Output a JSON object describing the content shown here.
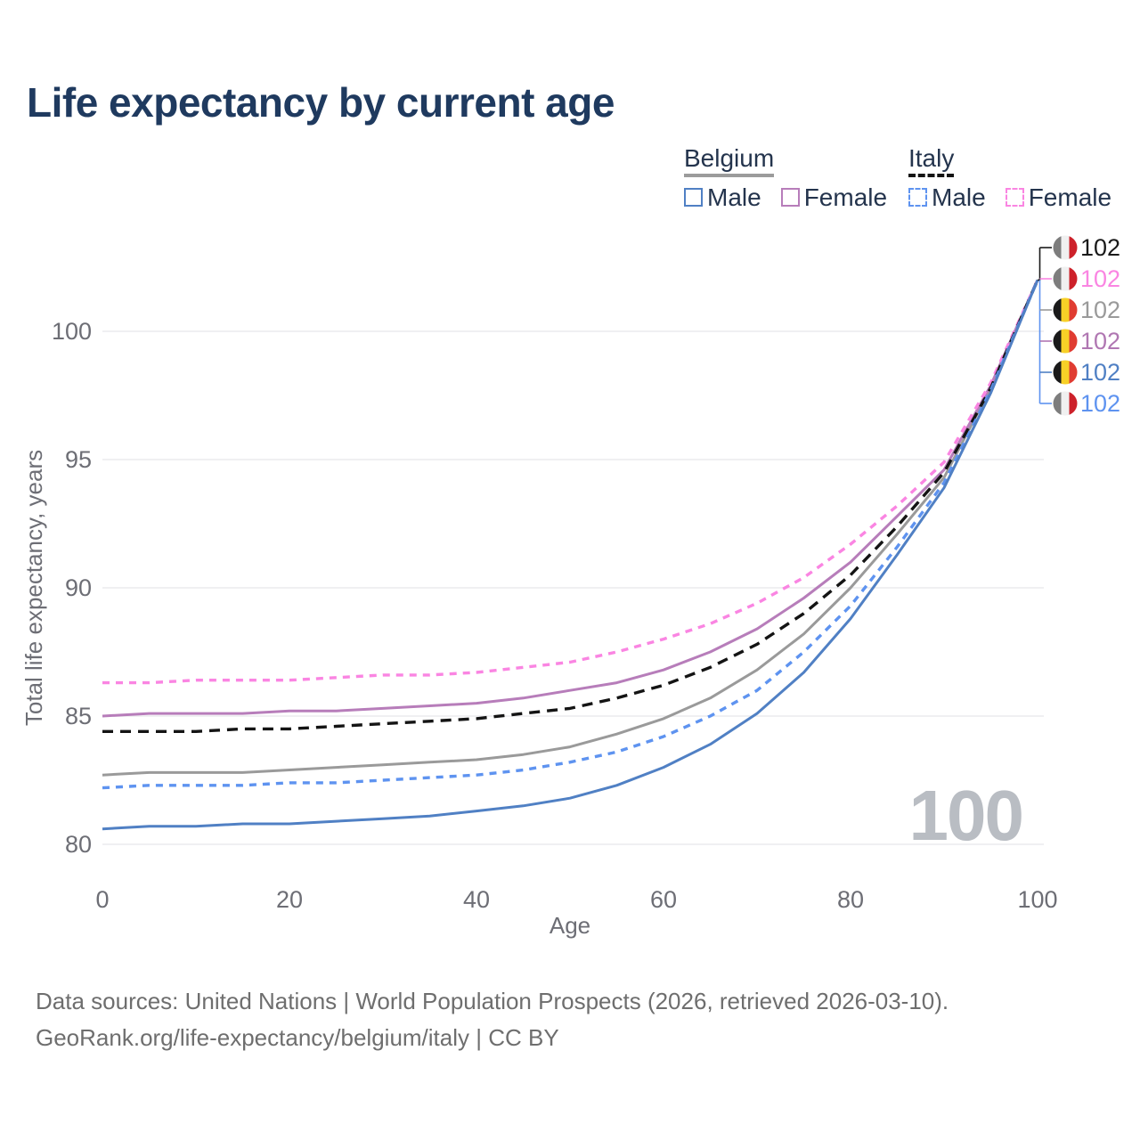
{
  "header": {
    "title": "Life expectancy by current age"
  },
  "legend": {
    "groups": [
      {
        "label": "Belgium",
        "line_style": "solid",
        "line_color": "#9b9b9b",
        "items": [
          {
            "label": "Male",
            "series": "belgium_male"
          },
          {
            "label": "Female",
            "series": "belgium_female"
          }
        ]
      },
      {
        "label": "Italy",
        "line_style": "dashed",
        "line_color": "#141414",
        "items": [
          {
            "label": "Male",
            "series": "italy_male"
          },
          {
            "label": "Female",
            "series": "italy_female"
          }
        ]
      }
    ]
  },
  "flags": {
    "italy": [
      "#7d7d7d",
      "#f0f0f0",
      "#cd212a"
    ],
    "belgium": [
      "#1a1a1a",
      "#f7d027",
      "#e03c31"
    ]
  },
  "chart_data": {
    "type": "line",
    "title": "Life expectancy by current age",
    "xlabel": "Age",
    "ylabel": "Total life expectancy, years",
    "xlim": [
      0,
      100
    ],
    "ylim": [
      79.5,
      102.5
    ],
    "xticks": [
      0,
      20,
      40,
      60,
      80,
      100
    ],
    "yticks": [
      80,
      85,
      90,
      95,
      100
    ],
    "grid": "horizontal",
    "legend_position": "top-right",
    "x": [
      0,
      5,
      10,
      15,
      20,
      25,
      30,
      35,
      40,
      45,
      50,
      55,
      60,
      65,
      70,
      75,
      80,
      85,
      90,
      95,
      100
    ],
    "series": [
      {
        "id": "belgium_total",
        "name": "Belgium",
        "color": "#9a9a9a",
        "dashed": false,
        "values": [
          82.7,
          82.8,
          82.8,
          82.8,
          82.9,
          83.0,
          83.1,
          83.2,
          83.3,
          83.5,
          83.8,
          84.3,
          84.9,
          85.7,
          86.8,
          88.2,
          90.0,
          92.1,
          94.3,
          97.8,
          102
        ]
      },
      {
        "id": "belgium_female",
        "name": "Belgium Female",
        "color": "#b77dba",
        "dashed": false,
        "values": [
          85.0,
          85.1,
          85.1,
          85.1,
          85.2,
          85.2,
          85.3,
          85.4,
          85.5,
          85.7,
          86.0,
          86.3,
          86.8,
          87.5,
          88.4,
          89.6,
          91.0,
          92.8,
          94.6,
          97.9,
          102
        ]
      },
      {
        "id": "italy_female",
        "name": "Italy Female",
        "color": "#fa85e2",
        "dashed": true,
        "dash": "8 7",
        "values": [
          86.3,
          86.3,
          86.4,
          86.4,
          86.4,
          86.5,
          86.6,
          86.6,
          86.7,
          86.9,
          87.1,
          87.5,
          88.0,
          88.6,
          89.4,
          90.4,
          91.7,
          93.2,
          94.9,
          98.0,
          102
        ]
      },
      {
        "id": "italy_total",
        "name": "Italy",
        "color": "#141414",
        "dashed": true,
        "dash": "12 8",
        "values": [
          84.4,
          84.4,
          84.4,
          84.5,
          84.5,
          84.6,
          84.7,
          84.8,
          84.9,
          85.1,
          85.3,
          85.7,
          86.2,
          86.9,
          87.8,
          89.0,
          90.5,
          92.4,
          94.5,
          97.8,
          102
        ]
      },
      {
        "id": "italy_male",
        "name": "Italy Male",
        "color": "#5e93f0",
        "dashed": true,
        "dash": "8 7",
        "values": [
          82.2,
          82.3,
          82.3,
          82.3,
          82.4,
          82.4,
          82.5,
          82.6,
          82.7,
          82.9,
          83.2,
          83.6,
          84.2,
          85.0,
          86.0,
          87.5,
          89.3,
          91.6,
          94.1,
          97.7,
          102
        ]
      },
      {
        "id": "belgium_male",
        "name": "Belgium Male",
        "color": "#5080c4",
        "dashed": false,
        "values": [
          80.6,
          80.7,
          80.7,
          80.8,
          80.8,
          80.9,
          81.0,
          81.1,
          81.3,
          81.5,
          81.8,
          82.3,
          83.0,
          83.9,
          85.1,
          86.7,
          88.8,
          91.3,
          93.9,
          97.6,
          102
        ]
      }
    ],
    "end_labels": [
      {
        "series": "italy_total",
        "value": "102",
        "flag": "italy",
        "color": "#1a1a1a"
      },
      {
        "series": "italy_female",
        "value": "102",
        "flag": "italy",
        "color": "#fa85e2"
      },
      {
        "series": "belgium_total",
        "value": "102",
        "flag": "belgium",
        "color": "#9a9a9a"
      },
      {
        "series": "belgium_female",
        "value": "102",
        "flag": "belgium",
        "color": "#b077b2"
      },
      {
        "series": "belgium_male",
        "value": "102",
        "flag": "belgium",
        "color": "#5080c4"
      },
      {
        "series": "italy_male",
        "value": "102",
        "flag": "italy",
        "color": "#5e93f0"
      }
    ]
  },
  "watermark": "100",
  "footer": {
    "line1": "Data sources: United Nations | World Population Prospects (2026, retrieved 2026-03-10).",
    "line2": "GeoRank.org/life-expectancy/belgium/italy | CC BY"
  }
}
